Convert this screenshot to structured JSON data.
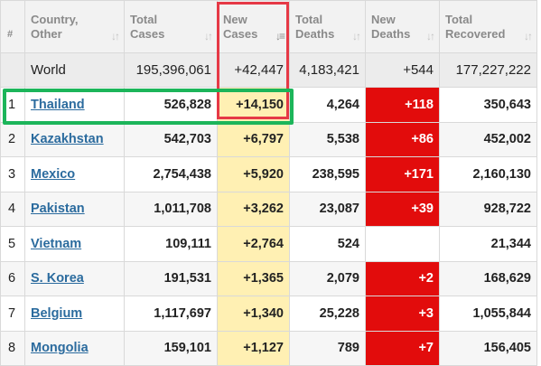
{
  "headers": {
    "idx": "#",
    "country": [
      "Country,",
      "Other"
    ],
    "total_cases": [
      "Total",
      "Cases"
    ],
    "new_cases": [
      "New",
      "Cases"
    ],
    "total_deaths": [
      "Total",
      "Deaths"
    ],
    "new_deaths": [
      "New",
      "Deaths"
    ],
    "total_recovered": [
      "Total",
      "Recovered"
    ]
  },
  "world": {
    "country": "World",
    "total_cases": "195,396,061",
    "new_cases": "+42,447",
    "total_deaths": "4,183,421",
    "new_deaths": "+544",
    "total_recovered": "177,227,222"
  },
  "rows": [
    {
      "idx": "1",
      "country": "Thailand",
      "total_cases": "526,828",
      "new_cases": "+14,150",
      "total_deaths": "4,264",
      "new_deaths": "+118",
      "total_recovered": "350,643"
    },
    {
      "idx": "2",
      "country": "Kazakhstan",
      "total_cases": "542,703",
      "new_cases": "+6,797",
      "total_deaths": "5,538",
      "new_deaths": "+86",
      "total_recovered": "452,002"
    },
    {
      "idx": "3",
      "country": "Mexico",
      "total_cases": "2,754,438",
      "new_cases": "+5,920",
      "total_deaths": "238,595",
      "new_deaths": "+171",
      "total_recovered": "2,160,130"
    },
    {
      "idx": "4",
      "country": "Pakistan",
      "total_cases": "1,011,708",
      "new_cases": "+3,262",
      "total_deaths": "23,087",
      "new_deaths": "+39",
      "total_recovered": "928,722"
    },
    {
      "idx": "5",
      "country": "Vietnam",
      "total_cases": "109,111",
      "new_cases": "+2,764",
      "total_deaths": "524",
      "new_deaths": "",
      "total_recovered": "21,344"
    },
    {
      "idx": "6",
      "country": "S. Korea",
      "total_cases": "191,531",
      "new_cases": "+1,365",
      "total_deaths": "2,079",
      "new_deaths": "+2",
      "total_recovered": "168,629"
    },
    {
      "idx": "7",
      "country": "Belgium",
      "total_cases": "1,117,697",
      "new_cases": "+1,340",
      "total_deaths": "25,228",
      "new_deaths": "+3",
      "total_recovered": "1,055,844"
    },
    {
      "idx": "8",
      "country": "Mongolia",
      "total_cases": "159,101",
      "new_cases": "+1,127",
      "total_deaths": "789",
      "new_deaths": "+7",
      "total_recovered": "156,405"
    }
  ],
  "colors": {
    "new_cases_highlight": "#fff0b3",
    "new_deaths_highlight": "#e20c0c",
    "annotation_red": "#e63946",
    "annotation_green": "#1cb55a",
    "link": "#2b6b9e"
  }
}
